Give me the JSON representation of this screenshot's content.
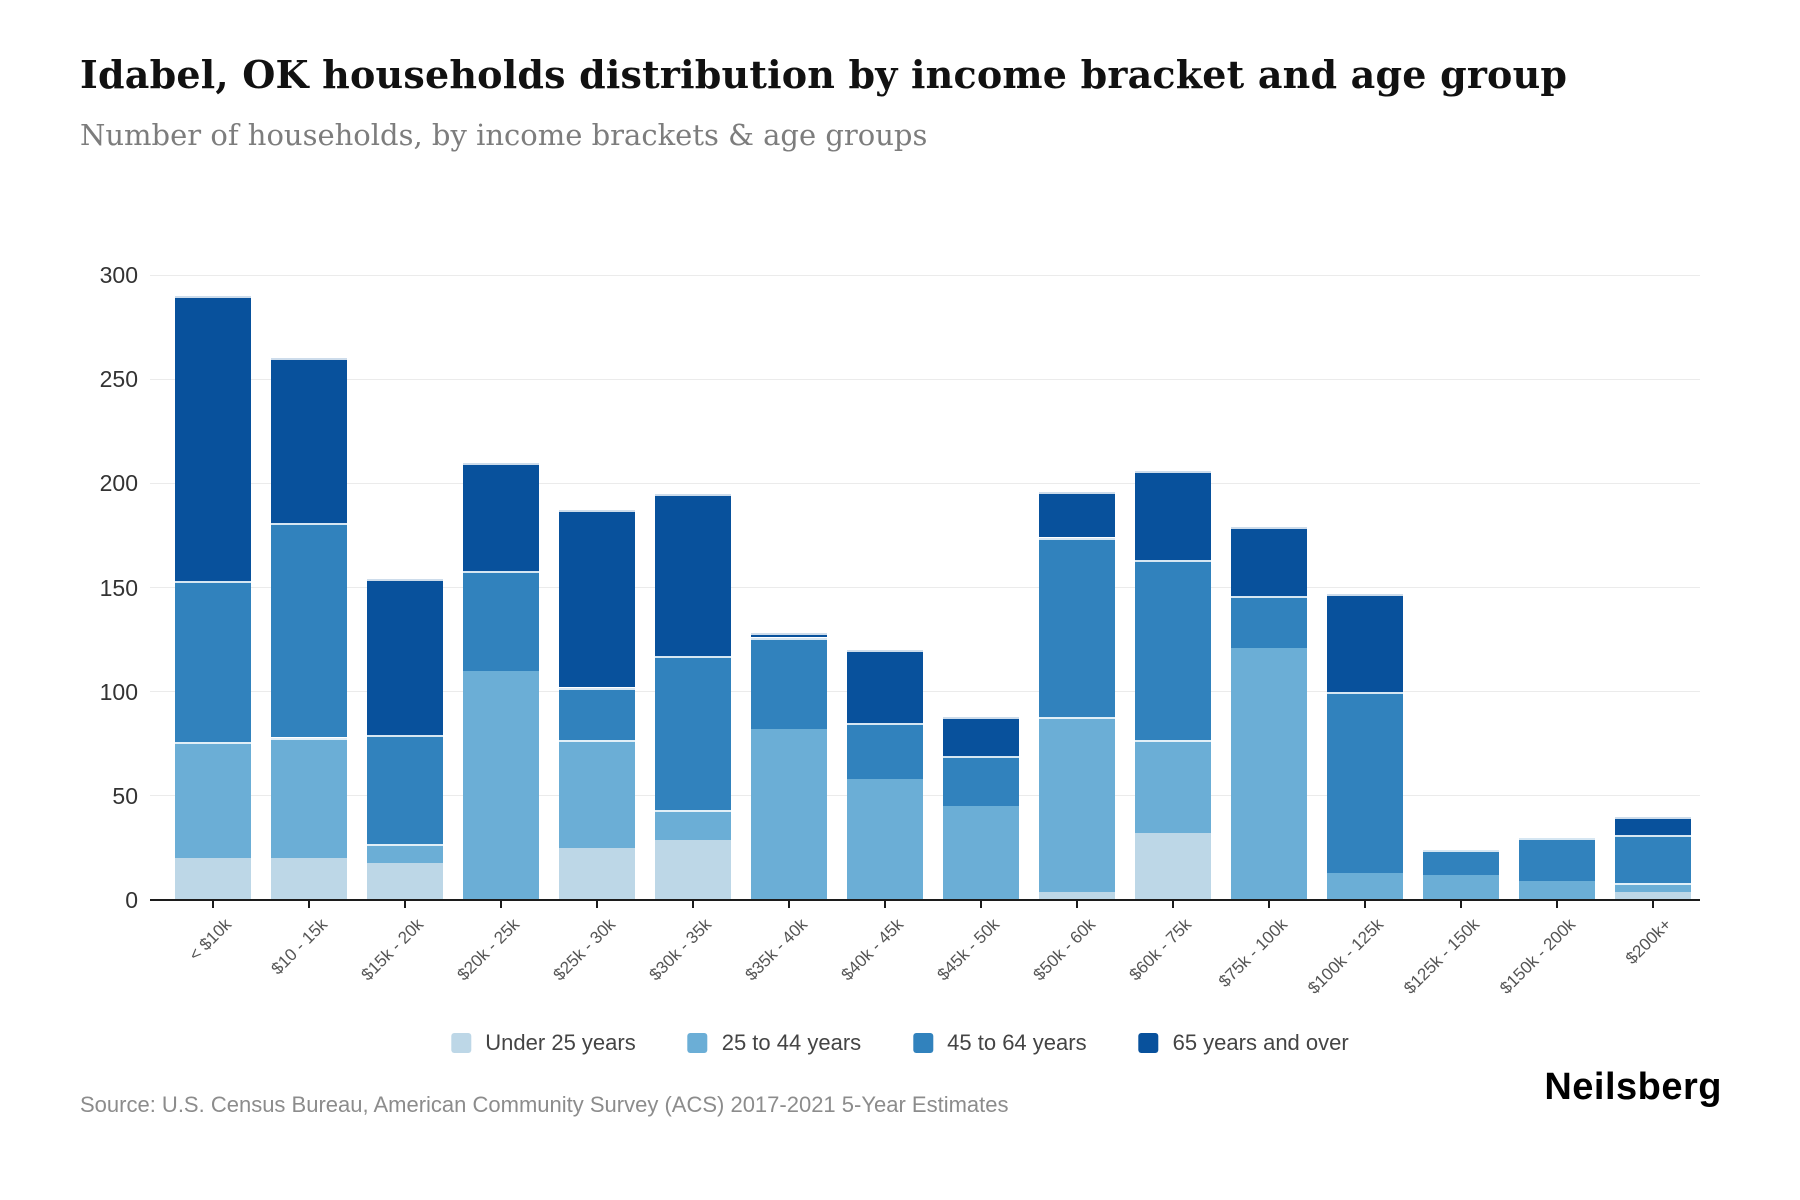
{
  "header": {
    "title": "Idabel, OK households distribution by income bracket and age group",
    "subtitle": "Number of households, by income brackets & age groups"
  },
  "footer": {
    "source": "Source: U.S. Census Bureau, American Community Survey (ACS) 2017-2021 5-Year Estimates",
    "logo": "Neilsberg"
  },
  "chart_data": {
    "type": "bar",
    "stacked": true,
    "title": "Idabel, OK households distribution by income bracket and age group",
    "subtitle": "Number of households, by income brackets & age groups",
    "xlabel": "",
    "ylabel": "",
    "ylim": [
      0,
      300
    ],
    "yticks": [
      0,
      50,
      100,
      150,
      200,
      250,
      300
    ],
    "grid": "horizontal",
    "legend_position": "bottom",
    "categories": [
      "< $10k",
      "$10 - 15k",
      "$15k - 20k",
      "$20k - 25k",
      "$25k - 30k",
      "$30k - 35k",
      "$35k - 40k",
      "$40k - 45k",
      "$45k - 50k",
      "$50k - 60k",
      "$60k - 75k",
      "$75k - 100k",
      "$100k - 125k",
      "$125k - 150k",
      "$150k - 200k",
      "$200k+"
    ],
    "series": [
      {
        "name": "Under 25 years",
        "color": "#bdd7e7",
        "values": [
          20,
          20,
          18,
          0,
          25,
          29,
          0,
          0,
          0,
          4,
          32,
          0,
          0,
          0,
          0,
          4
        ]
      },
      {
        "name": "25 to 44 years",
        "color": "#6baed6",
        "values": [
          56,
          58,
          9,
          110,
          52,
          14,
          82,
          58,
          45,
          84,
          45,
          121,
          13,
          12,
          9,
          4
        ]
      },
      {
        "name": "45 to 64 years",
        "color": "#3182bd",
        "values": [
          77,
          103,
          52,
          48,
          25,
          74,
          44,
          27,
          24,
          86,
          86,
          25,
          87,
          12,
          21,
          23
        ]
      },
      {
        "name": "65 years and over",
        "color": "#08519c",
        "values": [
          137,
          79,
          75,
          52,
          85,
          78,
          2,
          35,
          19,
          22,
          43,
          33,
          47,
          0,
          0,
          9
        ]
      }
    ],
    "totals": [
      290,
      260,
      154,
      210,
      187,
      195,
      128,
      120,
      88,
      196,
      206,
      179,
      147,
      24,
      30,
      40
    ]
  },
  "layout_colors": {
    "axis": "#1c1c1c",
    "gridline": "#ebebeb",
    "tick_text": "#555555"
  }
}
